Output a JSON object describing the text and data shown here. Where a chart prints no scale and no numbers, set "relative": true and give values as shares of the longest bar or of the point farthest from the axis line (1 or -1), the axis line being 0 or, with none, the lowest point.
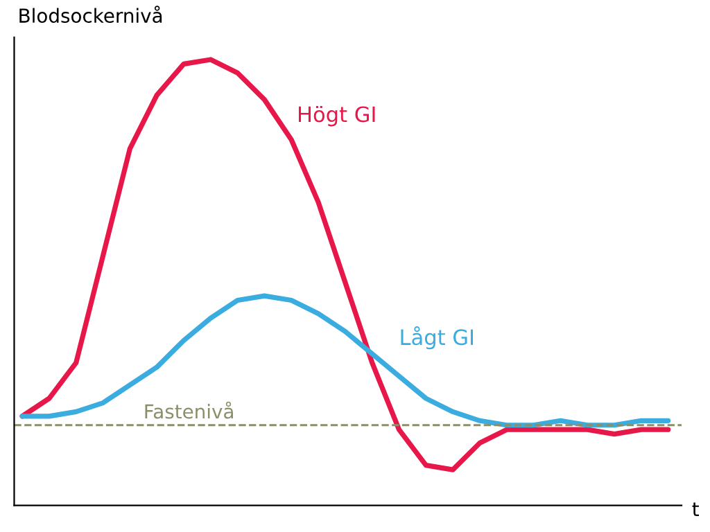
{
  "chart_data": {
    "type": "line",
    "relative": true,
    "ylabel": "Blodsockernivå",
    "xlabel": "t",
    "categories": [
      null,
      null,
      null,
      null,
      null,
      null,
      null,
      null,
      null,
      null,
      null,
      null,
      null,
      null,
      null,
      null,
      null,
      null,
      null,
      null,
      null,
      null,
      null,
      null,
      null
    ],
    "series": [
      {
        "name": "Högt GI",
        "color": "#e8174a",
        "values": [
          0.2,
          0.24,
          0.32,
          0.56,
          0.8,
          0.92,
          0.99,
          1.0,
          0.97,
          0.91,
          0.82,
          0.68,
          0.5,
          0.32,
          0.17,
          0.09,
          0.08,
          0.14,
          0.17,
          0.17,
          0.17,
          0.17,
          0.16,
          0.17,
          0.17
        ]
      },
      {
        "name": "Lågt GI",
        "color": "#3aace0",
        "values": [
          0.2,
          0.2,
          0.21,
          0.23,
          0.27,
          0.31,
          0.37,
          0.42,
          0.46,
          0.47,
          0.46,
          0.43,
          0.39,
          0.34,
          0.29,
          0.24,
          0.21,
          0.19,
          0.18,
          0.18,
          0.19,
          0.18,
          0.18,
          0.19,
          0.19
        ]
      }
    ],
    "ref_lines": [
      {
        "axis": "y",
        "value": 0.18,
        "label": "Fastenivå",
        "color": "#8a8f6a",
        "line_style": "dashed"
      }
    ],
    "grid": false,
    "legend": false,
    "marker": "none",
    "line_style": "solid"
  }
}
